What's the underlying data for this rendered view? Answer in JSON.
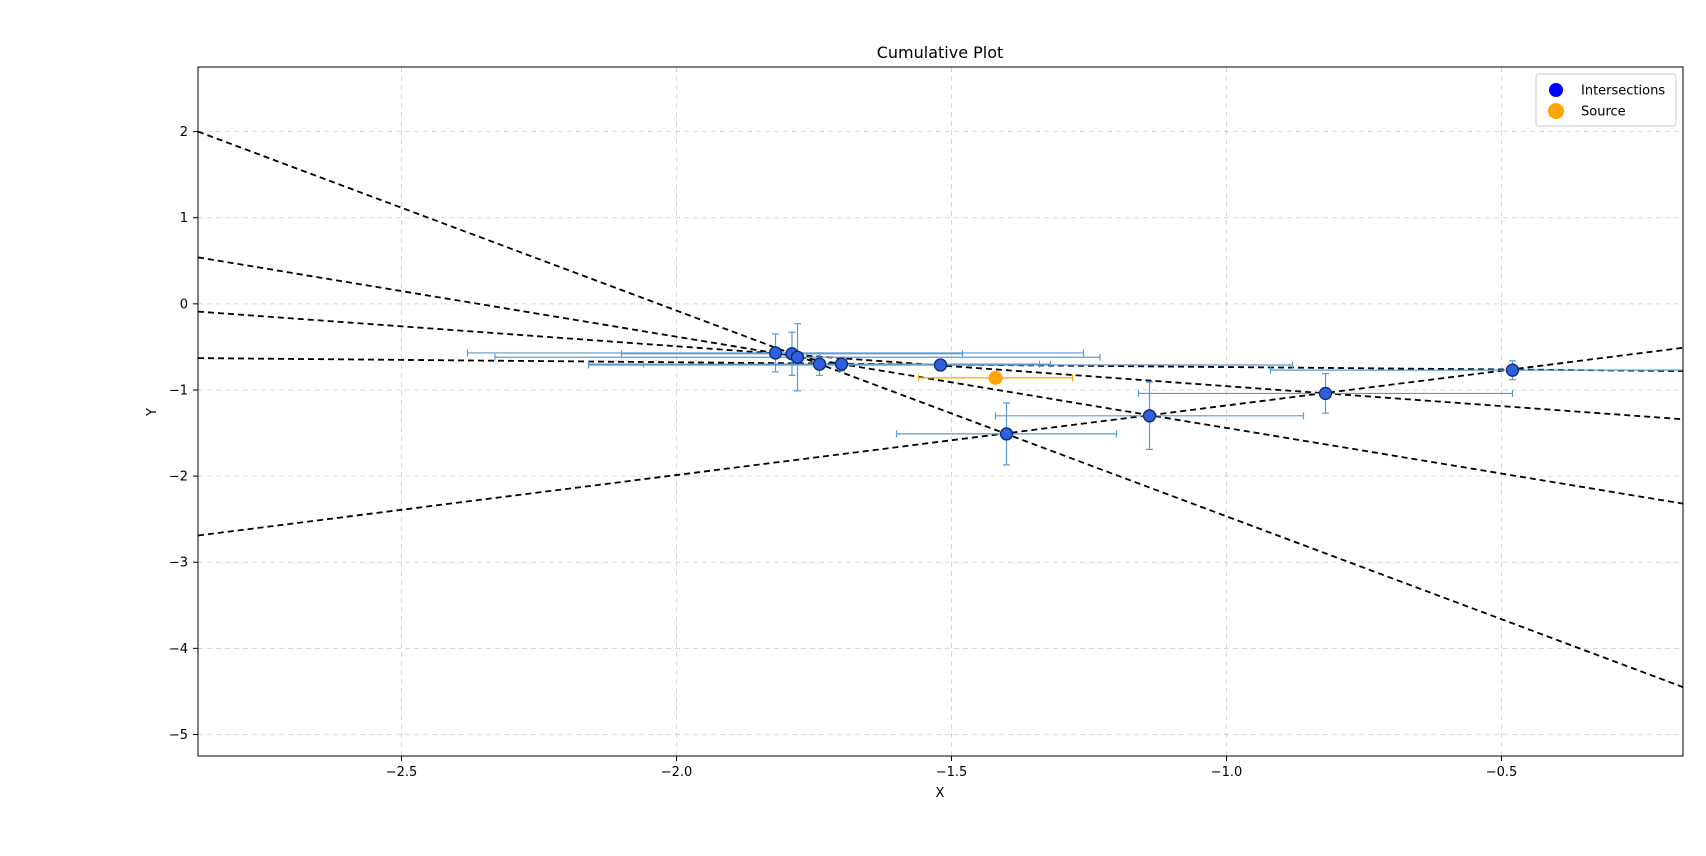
{
  "chart_data": {
    "type": "scatter",
    "title": "Cumulative Plot",
    "xlabel": "X",
    "ylabel": "Y",
    "xlim": [
      -2.87,
      -0.17
    ],
    "ylim": [
      -5.25,
      2.75
    ],
    "grid": true,
    "grid_style": "dashed",
    "legend_position": "upper right",
    "xticks": [
      -2.5,
      -2.0,
      -1.5,
      -1.0,
      -0.5
    ],
    "xtick_labels": [
      "−2.5",
      "−2.0",
      "−1.5",
      "−1.0",
      "−0.5"
    ],
    "yticks": [
      2,
      1,
      0,
      -1,
      -2,
      -3,
      -4,
      -5
    ],
    "ytick_labels": [
      "2",
      "1",
      "0",
      "−1",
      "−2",
      "−3",
      "−4",
      "−5"
    ],
    "lines": [
      {
        "x": [
          -2.87,
          -0.17
        ],
        "y": [
          2.0,
          -4.45
        ]
      },
      {
        "x": [
          -2.87,
          -0.17
        ],
        "y": [
          0.54,
          -2.32
        ]
      },
      {
        "x": [
          -2.87,
          -0.17
        ],
        "y": [
          -0.09,
          -1.34
        ]
      },
      {
        "x": [
          -2.87,
          -0.17
        ],
        "y": [
          -0.63,
          -0.78
        ]
      },
      {
        "x": [
          -2.87,
          -0.17
        ],
        "y": [
          -2.69,
          -0.51
        ]
      }
    ],
    "series": [
      {
        "name": "Intersections",
        "color": "#0000ff",
        "errorbar_color": "#5a9bd4",
        "points": [
          {
            "x": -1.82,
            "y": -0.57,
            "xerr": 0.56,
            "yerr": 0.22
          },
          {
            "x": -1.79,
            "y": -0.58,
            "xerr": 0.31,
            "yerr": 0.25
          },
          {
            "x": -1.78,
            "y": -0.62,
            "xerr": 0.55,
            "yerr": 0.39
          },
          {
            "x": -1.74,
            "y": -0.7,
            "xerr": 0.42,
            "yerr": 0.13
          },
          {
            "x": -1.7,
            "y": -0.7,
            "xerr": 0.36,
            "yerr": 0.08
          },
          {
            "x": -1.52,
            "y": -0.71,
            "xerr": 0.64,
            "yerr": 0.06
          },
          {
            "x": -1.4,
            "y": -1.51,
            "xerr": 0.2,
            "yerr": 0.36
          },
          {
            "x": -1.14,
            "y": -1.3,
            "xerr": 0.28,
            "yerr": 0.39
          },
          {
            "x": -0.82,
            "y": -1.04,
            "xerr": 0.34,
            "yerr": 0.23
          },
          {
            "x": -0.48,
            "y": -0.77,
            "xerr": 0.44,
            "yerr": 0.11
          }
        ]
      },
      {
        "name": "Source",
        "color": "#ffa500",
        "errorbar_color": "#ffa500",
        "points": [
          {
            "x": -1.42,
            "y": -0.86,
            "xerr": 0.14,
            "yerr": 0.0
          }
        ]
      }
    ]
  }
}
